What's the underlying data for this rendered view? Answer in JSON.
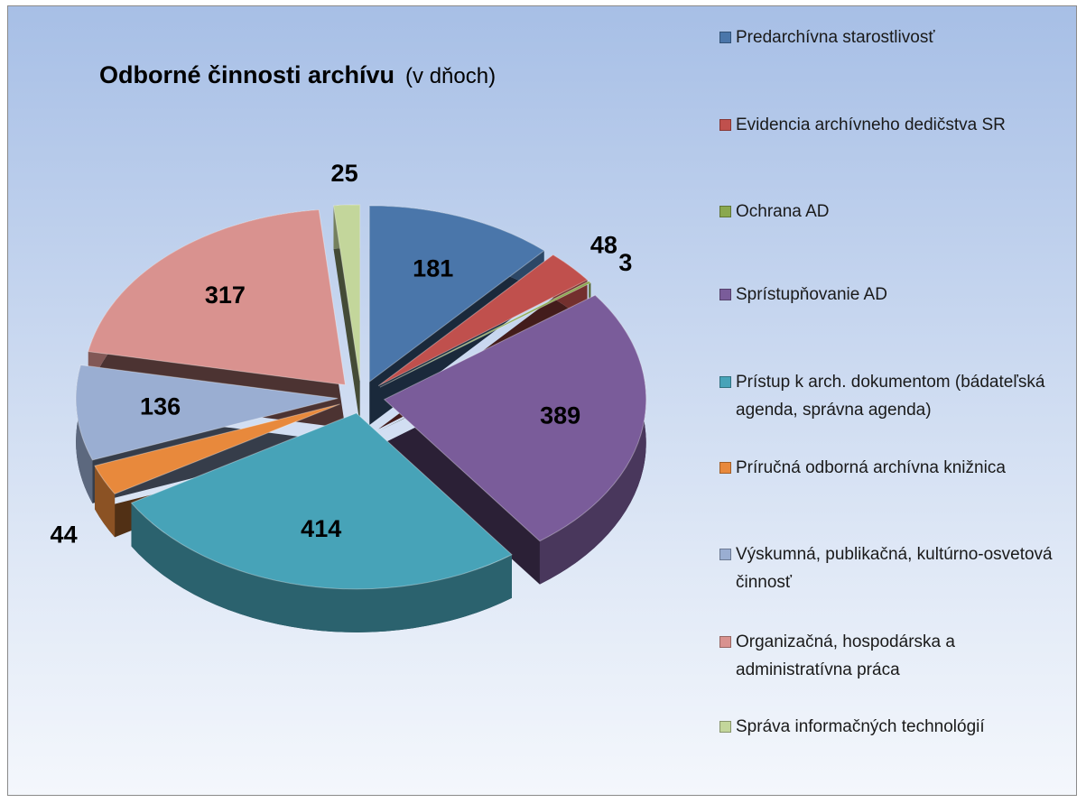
{
  "chart_data": {
    "type": "pie",
    "title": "Odborné činnosti archívu",
    "subtitle": "(v dňoch)",
    "categories": [
      "Predarchívna starostlivosť",
      "Evidencia archívneho dedičstva SR",
      "Ochrana AD",
      "Sprístupňovanie AD",
      "Prístup k arch. dokumentom (bádateľská agenda, správna agenda)",
      "Príručná odborná archívna knižnica",
      "Výskumná, publikačná, kultúrno-osvetová činnosť",
      "Organizačná, hospodárska a administratívna práca",
      "Správa informačných technológií"
    ],
    "values": [
      181,
      48,
      3,
      389,
      414,
      44,
      136,
      317,
      25
    ],
    "colors": [
      "#4a76aa",
      "#c0504d",
      "#8aa84e",
      "#7a5c9a",
      "#47a3b8",
      "#e8893c",
      "#9aaed2",
      "#d9928f",
      "#c3d69b"
    ],
    "legend": "right"
  }
}
